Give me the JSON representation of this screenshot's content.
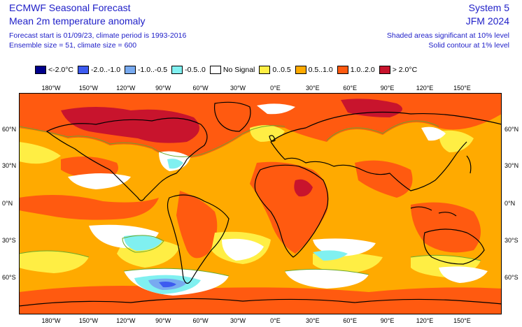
{
  "header": {
    "title": "ECMWF Seasonal Forecast",
    "subtitle": "Mean 2m temperature anomaly",
    "info_line1": "Forecast start is 01/09/23, climate period is 1993-2016",
    "info_line2": "Ensemble size = 51, climate size = 600",
    "system": "System 5",
    "period": "JFM 2024",
    "sig_note1": "Shaded areas significant at 10% level",
    "sig_note2": "Solid contour at 1% level"
  },
  "legend": [
    {
      "label": "<-2.0°C",
      "color": "#00008b"
    },
    {
      "label": "-2.0..-1.0",
      "color": "#3d5bf0"
    },
    {
      "label": "-1.0..-0.5",
      "color": "#78aaf0"
    },
    {
      "label": "-0.5..0",
      "color": "#80f0f0"
    },
    {
      "label": "No Signal",
      "color": "#ffffff"
    },
    {
      "label": "0..0.5",
      "color": "#ffee44"
    },
    {
      "label": "0.5..1.0",
      "color": "#ffaa00"
    },
    {
      "label": "1.0..2.0",
      "color": "#ff5a10"
    },
    {
      "label": "> 2.0°C",
      "color": "#c8142d"
    }
  ],
  "lon_ticks": [
    "180°W",
    "150°W",
    "120°W",
    "90°W",
    "60°W",
    "30°W",
    "0°E",
    "30°E",
    "60°E",
    "90°E",
    "120°E",
    "150°E"
  ],
  "lat_ticks": [
    "60°N",
    "30°N",
    "0°N",
    "30°S",
    "60°S"
  ],
  "colors": {
    "text_blue": "#2020c8",
    "contour": "#6aa82a",
    "coast": "#000000"
  }
}
